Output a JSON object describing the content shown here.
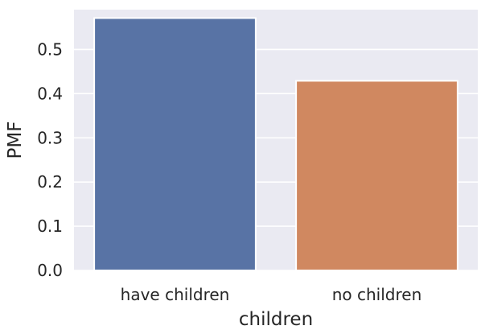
{
  "chart_data": {
    "type": "bar",
    "categories": [
      "have children",
      "no children"
    ],
    "values": [
      0.571,
      0.429
    ],
    "colors": [
      "#5873a5",
      "#d08860"
    ],
    "background": "#eaeaf2",
    "grid_color": "#ffffff",
    "xlabel": "children",
    "ylabel": "PMF",
    "ylim": [
      0,
      0.59
    ],
    "yticks": [
      {
        "value": 0.0,
        "label": "0.0"
      },
      {
        "value": 0.1,
        "label": "0.1"
      },
      {
        "value": 0.2,
        "label": "0.2"
      },
      {
        "value": 0.3,
        "label": "0.3"
      },
      {
        "value": 0.4,
        "label": "0.4"
      },
      {
        "value": 0.5,
        "label": "0.5"
      }
    ],
    "grid": true
  }
}
